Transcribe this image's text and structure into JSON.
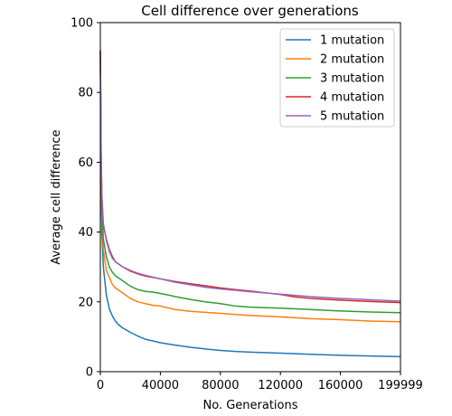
{
  "chart_data": {
    "type": "line",
    "title": "Cell difference over generations",
    "xlabel": "No. Generations",
    "ylabel": "Average cell difference",
    "xlim": [
      0,
      199999
    ],
    "ylim": [
      0,
      100
    ],
    "xticks": [
      0,
      40000,
      80000,
      120000,
      160000,
      199999
    ],
    "xtick_labels": [
      "0",
      "40000",
      "80000",
      "120000",
      "160000",
      "199999"
    ],
    "yticks": [
      0,
      20,
      40,
      60,
      80,
      100
    ],
    "ytick_labels": [
      "0",
      "20",
      "40",
      "60",
      "80",
      "100"
    ],
    "grid": false,
    "legend_position": "top-right",
    "series": [
      {
        "name": "1 mutation",
        "color": "#1f77b4",
        "points": [
          [
            0,
            92
          ],
          [
            500,
            55
          ],
          [
            1000,
            40
          ],
          [
            2000,
            30
          ],
          [
            4000,
            22
          ],
          [
            6000,
            18
          ],
          [
            8000,
            16
          ],
          [
            10000,
            14.5
          ],
          [
            12000,
            13.5
          ],
          [
            15000,
            12.5
          ],
          [
            20000,
            11.3
          ],
          [
            25000,
            10.2
          ],
          [
            30000,
            9.3
          ],
          [
            35000,
            8.8
          ],
          [
            40000,
            8.3
          ],
          [
            50000,
            7.6
          ],
          [
            60000,
            7.0
          ],
          [
            70000,
            6.5
          ],
          [
            80000,
            6.1
          ],
          [
            90000,
            5.8
          ],
          [
            100000,
            5.6
          ],
          [
            120000,
            5.3
          ],
          [
            140000,
            5.0
          ],
          [
            160000,
            4.7
          ],
          [
            180000,
            4.5
          ],
          [
            199999,
            4.3
          ]
        ]
      },
      {
        "name": "2 mutation",
        "color": "#ff7f0e",
        "points": [
          [
            0,
            92
          ],
          [
            500,
            58
          ],
          [
            1000,
            45
          ],
          [
            2000,
            35
          ],
          [
            4000,
            29
          ],
          [
            6000,
            27
          ],
          [
            8000,
            25
          ],
          [
            10000,
            24
          ],
          [
            15000,
            22.5
          ],
          [
            20000,
            21
          ],
          [
            25000,
            20
          ],
          [
            30000,
            19.5
          ],
          [
            35000,
            19
          ],
          [
            40000,
            18.8
          ],
          [
            45000,
            18.3
          ],
          [
            50000,
            17.8
          ],
          [
            60000,
            17.3
          ],
          [
            70000,
            17
          ],
          [
            80000,
            16.7
          ],
          [
            90000,
            16.4
          ],
          [
            100000,
            16.1
          ],
          [
            120000,
            15.7
          ],
          [
            140000,
            15.2
          ],
          [
            160000,
            14.9
          ],
          [
            180000,
            14.5
          ],
          [
            199999,
            14.3
          ]
        ]
      },
      {
        "name": "3 mutation",
        "color": "#2ca02c",
        "points": [
          [
            0,
            92
          ],
          [
            500,
            60
          ],
          [
            1000,
            48
          ],
          [
            2000,
            38
          ],
          [
            4000,
            33
          ],
          [
            6000,
            30
          ],
          [
            8000,
            28.5
          ],
          [
            10000,
            27.5
          ],
          [
            15000,
            26
          ],
          [
            20000,
            24.5
          ],
          [
            25000,
            23.5
          ],
          [
            30000,
            23
          ],
          [
            35000,
            22.8
          ],
          [
            40000,
            22.4
          ],
          [
            45000,
            22
          ],
          [
            50000,
            21.5
          ],
          [
            60000,
            20.7
          ],
          [
            70000,
            20
          ],
          [
            80000,
            19.5
          ],
          [
            90000,
            18.8
          ],
          [
            100000,
            18.5
          ],
          [
            120000,
            18.2
          ],
          [
            140000,
            17.8
          ],
          [
            160000,
            17.4
          ],
          [
            180000,
            17.1
          ],
          [
            199999,
            16.9
          ]
        ]
      },
      {
        "name": "4 mutation",
        "color": "#d62728",
        "points": [
          [
            0,
            92
          ],
          [
            500,
            63
          ],
          [
            1000,
            50
          ],
          [
            2000,
            42
          ],
          [
            4000,
            38
          ],
          [
            6000,
            35
          ],
          [
            8000,
            33
          ],
          [
            10000,
            31.5
          ],
          [
            15000,
            30
          ],
          [
            20000,
            28.8
          ],
          [
            25000,
            28
          ],
          [
            30000,
            27.4
          ],
          [
            35000,
            27
          ],
          [
            40000,
            26.6
          ],
          [
            45000,
            26.2
          ],
          [
            50000,
            25.8
          ],
          [
            60000,
            25.2
          ],
          [
            70000,
            24.6
          ],
          [
            80000,
            24
          ],
          [
            90000,
            23.5
          ],
          [
            100000,
            23.1
          ],
          [
            120000,
            22.1
          ],
          [
            130000,
            21.4
          ],
          [
            140000,
            21
          ],
          [
            160000,
            20.5
          ],
          [
            180000,
            20.1
          ],
          [
            199999,
            19.8
          ]
        ]
      },
      {
        "name": "5 mutation",
        "color": "#9467bd",
        "points": [
          [
            0,
            92
          ],
          [
            500,
            64
          ],
          [
            1000,
            51
          ],
          [
            2000,
            42.5
          ],
          [
            4000,
            37.5
          ],
          [
            6000,
            34.5
          ],
          [
            8000,
            32.5
          ],
          [
            10000,
            31.5
          ],
          [
            15000,
            30
          ],
          [
            20000,
            29
          ],
          [
            25000,
            28.2
          ],
          [
            30000,
            27.6
          ],
          [
            35000,
            27.1
          ],
          [
            40000,
            26.6
          ],
          [
            45000,
            26.1
          ],
          [
            50000,
            25.6
          ],
          [
            60000,
            24.9
          ],
          [
            70000,
            24.2
          ],
          [
            80000,
            23.7
          ],
          [
            90000,
            23.3
          ],
          [
            100000,
            22.9
          ],
          [
            120000,
            22.2
          ],
          [
            140000,
            21.5
          ],
          [
            160000,
            21
          ],
          [
            180000,
            20.6
          ],
          [
            199999,
            20.2
          ]
        ]
      }
    ]
  }
}
